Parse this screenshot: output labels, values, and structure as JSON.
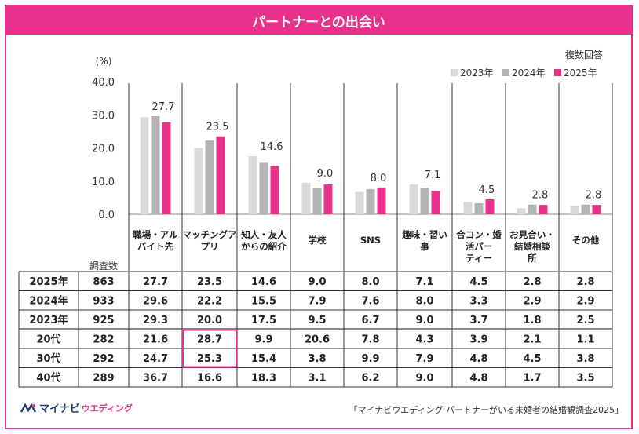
{
  "title": "パートナーとの出会い",
  "note": "複数回答",
  "unit_label": "(%)",
  "n_label": "調査数",
  "source": "「マイナビウエディング パートナーがいる未婚者の結婚観調査2025」",
  "logo": {
    "main": "マイナビ",
    "sub": "ウエディング"
  },
  "colors": {
    "2023年": "#d9d9d9",
    "2024年": "#b3b3b3",
    "2025年": "#e8318a",
    "accent": "#e8318a"
  },
  "chart_data": {
    "type": "bar",
    "ylim": [
      0,
      40
    ],
    "yticks": [
      "0.0",
      "10.0",
      "20.0",
      "30.0",
      "40.0"
    ],
    "categories": [
      [
        "職場・アル",
        "バイト先"
      ],
      [
        "マッチングア",
        "プリ"
      ],
      [
        "知人・友人",
        "からの紹介"
      ],
      [
        "学校"
      ],
      [
        "SNS"
      ],
      [
        "趣味・習い",
        "事"
      ],
      [
        "合コン・婚",
        "活パー",
        "ティー"
      ],
      [
        "お見合い・",
        "結婚相談",
        "所"
      ],
      [
        "その他"
      ]
    ],
    "series": [
      {
        "name": "2023年",
        "values": [
          29.3,
          20.0,
          17.5,
          9.5,
          6.7,
          9.0,
          3.7,
          1.8,
          2.5
        ]
      },
      {
        "name": "2024年",
        "values": [
          29.6,
          22.2,
          15.5,
          7.9,
          7.6,
          8.0,
          3.3,
          2.9,
          2.9
        ]
      },
      {
        "name": "2025年",
        "values": [
          27.7,
          23.5,
          14.6,
          9.0,
          8.0,
          7.1,
          4.5,
          2.8,
          2.8
        ]
      }
    ],
    "data_labels": [
      "27.7",
      "23.5",
      "14.6",
      "9.0",
      "8.0",
      "7.1",
      "4.5",
      "2.8",
      "2.8"
    ],
    "legend": [
      "2023年",
      "2024年",
      "2025年"
    ]
  },
  "table": {
    "rows": [
      {
        "label": "2025年",
        "n": "863",
        "values": [
          "27.7",
          "23.5",
          "14.6",
          "9.0",
          "8.0",
          "7.1",
          "4.5",
          "2.8",
          "2.8"
        ]
      },
      {
        "label": "2024年",
        "n": "933",
        "values": [
          "29.6",
          "22.2",
          "15.5",
          "7.9",
          "7.6",
          "8.0",
          "3.3",
          "2.9",
          "2.9"
        ]
      },
      {
        "label": "2023年",
        "n": "925",
        "values": [
          "29.3",
          "20.0",
          "17.5",
          "9.5",
          "6.7",
          "9.0",
          "3.7",
          "1.8",
          "2.5"
        ]
      },
      {
        "label": "20代",
        "n": "282",
        "values": [
          "21.6",
          "28.7",
          "9.9",
          "20.6",
          "7.8",
          "4.3",
          "3.9",
          "2.1",
          "1.1"
        ]
      },
      {
        "label": "30代",
        "n": "292",
        "values": [
          "24.7",
          "25.3",
          "15.4",
          "3.8",
          "9.9",
          "7.9",
          "4.8",
          "4.5",
          "3.8"
        ]
      },
      {
        "label": "40代",
        "n": "289",
        "values": [
          "36.7",
          "16.6",
          "18.3",
          "3.1",
          "6.2",
          "9.0",
          "4.8",
          "1.7",
          "3.5"
        ]
      }
    ]
  }
}
